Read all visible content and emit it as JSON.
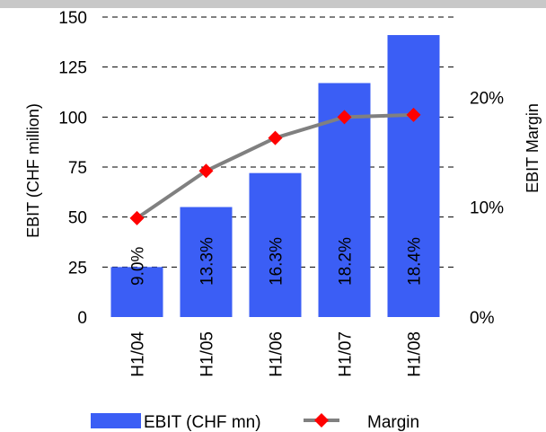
{
  "chart_data": {
    "type": "bar",
    "categories": [
      "H1/04",
      "H1/05",
      "H1/06",
      "H1/07",
      "H1/08"
    ],
    "series": [
      {
        "name": "EBIT (CHF mn)",
        "type": "bar",
        "axis": "left",
        "values": [
          25,
          55,
          72,
          117,
          141
        ]
      },
      {
        "name": "Margin",
        "type": "line",
        "axis": "right",
        "values": [
          9.0,
          13.3,
          16.3,
          18.2,
          18.4
        ],
        "labels": [
          "9.0%",
          "13.3%",
          "16.3%",
          "18.2%",
          "18.4%"
        ]
      }
    ],
    "ylabel": "EBIT (CHF million)",
    "ylim": [
      0,
      150
    ],
    "yticks": [
      0,
      25,
      50,
      75,
      100,
      125,
      150
    ],
    "y2label": "EBIT Margin",
    "y2lim": [
      0,
      27.3
    ],
    "y2ticks": [
      0,
      10,
      20
    ],
    "y2ticklabels": [
      "0%",
      "10%",
      "20%"
    ],
    "grid": "horizontal dashed",
    "legend_position": "bottom",
    "colors": {
      "bar": "#3b5ef5",
      "line": "#808080",
      "marker": "#ff0000",
      "grid": "#000000",
      "top_band": "#c8c8c8"
    }
  }
}
